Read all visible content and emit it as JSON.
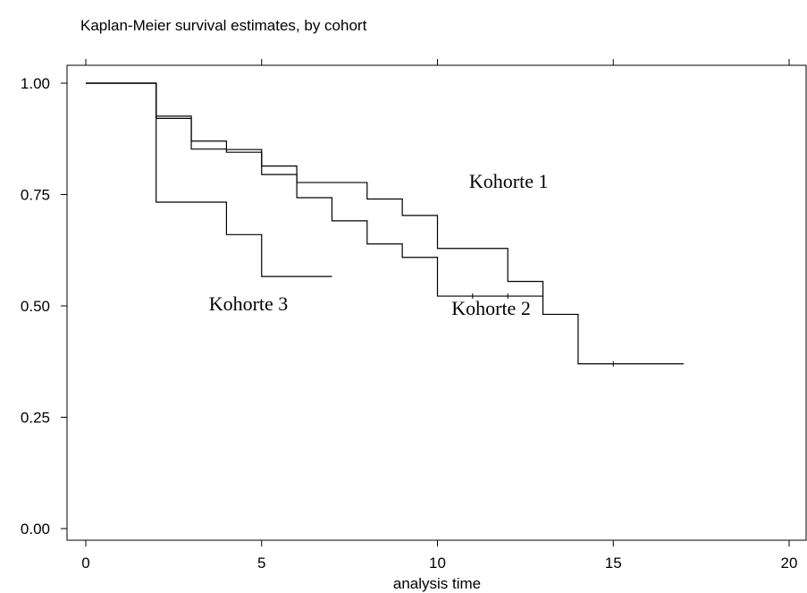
{
  "chart_data": {
    "type": "line",
    "title": "Kaplan-Meier survival estimates, by cohort",
    "xlabel": "analysis time",
    "ylabel": "",
    "xlim": [
      0,
      20
    ],
    "ylim": [
      0,
      1
    ],
    "x_ticks": [
      0,
      5,
      10,
      15,
      20
    ],
    "y_ticks": [
      0.0,
      0.25,
      0.5,
      0.75,
      1.0
    ],
    "x_tick_labels": [
      "0",
      "5",
      "10",
      "15",
      "20"
    ],
    "y_tick_labels": [
      "0.00",
      "0.25",
      "0.50",
      "0.75",
      "1.00"
    ],
    "grid": false,
    "step": true,
    "series": [
      {
        "name": "Kohorte 1",
        "x": [
          0,
          2,
          3,
          4,
          5,
          6,
          8,
          9,
          10,
          12,
          13,
          14,
          17
        ],
        "y": [
          1.0,
          0.926,
          0.87,
          0.851,
          0.814,
          0.777,
          0.74,
          0.703,
          0.629,
          0.555,
          0.481,
          0.37,
          0.37
        ],
        "censored": [
          15
        ]
      },
      {
        "name": "Kohorte 2",
        "x": [
          0,
          2,
          3,
          4,
          5,
          6,
          7,
          8,
          9,
          10,
          13
        ],
        "y": [
          1.0,
          0.921,
          0.852,
          0.845,
          0.795,
          0.743,
          0.691,
          0.639,
          0.609,
          0.522,
          0.522
        ],
        "censored": [
          11,
          12
        ]
      },
      {
        "name": "Kohorte 3",
        "x": [
          0,
          2,
          4,
          5,
          7
        ],
        "y": [
          1.0,
          0.733,
          0.66,
          0.566,
          0.566
        ],
        "censored": []
      }
    ],
    "annotations": [
      {
        "text": "Kohorte 1",
        "x": 10.9,
        "y": 0.765
      },
      {
        "text": "Kohorte 2",
        "x": 10.4,
        "y": 0.48
      },
      {
        "text": "Kohorte 3",
        "x": 3.5,
        "y": 0.49
      }
    ]
  }
}
